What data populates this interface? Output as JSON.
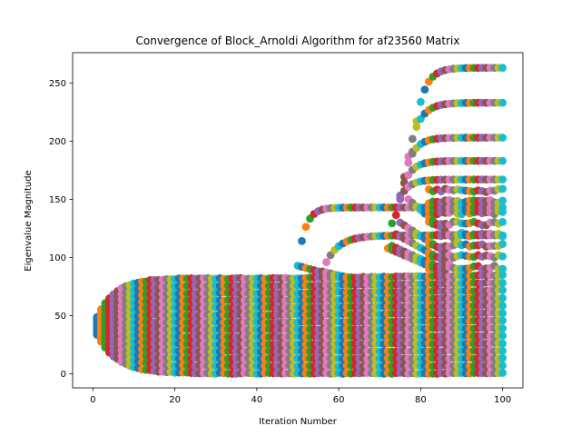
{
  "chart_data": {
    "type": "scatter",
    "title": "Convergence of Block_Arnoldi Algorithm for af23560 Matrix",
    "xlabel": "Iteration Number",
    "ylabel": "Eigenvalue Magnitude",
    "xlim": [
      -4.95,
      104.95
    ],
    "ylim": [
      -12,
      276
    ],
    "x_ticks": [
      0,
      20,
      40,
      60,
      80,
      100
    ],
    "y_ticks": [
      0,
      50,
      100,
      150,
      200,
      250
    ],
    "grid": false,
    "legend": "none",
    "palette": [
      "#1f77b4",
      "#ff7f0e",
      "#2ca02c",
      "#d62728",
      "#9467bd",
      "#8c564b",
      "#e377c2",
      "#7f7f7f",
      "#bcbd22",
      "#17becf"
    ],
    "iterations": [
      1,
      100
    ],
    "eigenvalues_per_iteration": 14,
    "base_band": {
      "upper_limit": 82,
      "lower_limit": 0.5,
      "center": 41
    },
    "converging_branches": [
      {
        "onset_iteration": 50,
        "start_value": 93,
        "converged_value": 143,
        "rate": 0.55
      },
      {
        "onset_iteration": 56,
        "start_value": 88,
        "converged_value": 119,
        "rate": 0.3
      },
      {
        "onset_iteration": 72,
        "start_value": 108,
        "converged_value": 167,
        "rate": 0.45
      },
      {
        "onset_iteration": 73,
        "start_value": 110,
        "converged_value": 183,
        "rate": 0.45
      },
      {
        "onset_iteration": 74,
        "start_value": 120,
        "converged_value": 203,
        "rate": 0.45
      },
      {
        "onset_iteration": 75,
        "start_value": 130,
        "converged_value": 233,
        "rate": 0.4
      },
      {
        "onset_iteration": 77,
        "start_value": 150,
        "converged_value": 263,
        "rate": 0.45
      }
    ]
  }
}
